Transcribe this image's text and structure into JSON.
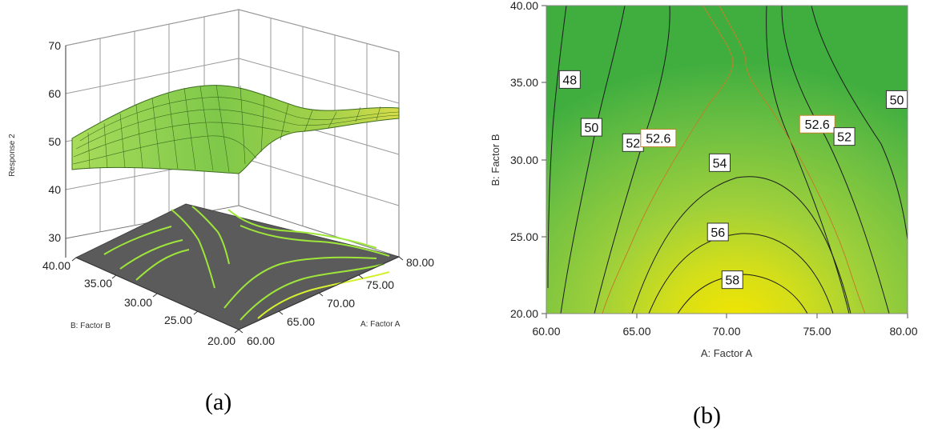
{
  "panels": {
    "a_caption": "(a)",
    "b_caption": "(b)"
  },
  "chart_data": [
    {
      "type": "surface3d",
      "zlabel": "Response 2",
      "xlabel": "A: Factor A",
      "ylabel": "B: Factor B",
      "zlim": [
        30,
        70
      ],
      "z_ticks": [
        "30",
        "40",
        "50",
        "60",
        "70"
      ],
      "x_ticks": [
        "60.00",
        "65.00",
        "70.00",
        "75.00",
        "80.00"
      ],
      "y_ticks": [
        "20.00",
        "25.00",
        "30.00",
        "35.00",
        "40.00"
      ],
      "grid": true,
      "surface_color": "#8fd14f",
      "floor_color": "#5b5b5b",
      "floor_contour_color": "#9ee63a"
    },
    {
      "type": "contour",
      "xlabel": "A: Factor A",
      "ylabel": "B: Factor B",
      "xlim": [
        60,
        80
      ],
      "ylim": [
        20,
        40
      ],
      "x_ticks": [
        "60.00",
        "65.00",
        "70.00",
        "75.00",
        "80.00"
      ],
      "y_ticks": [
        "20.00",
        "25.00",
        "30.00",
        "35.00",
        "40.00"
      ],
      "contour_labels": [
        {
          "text": "48",
          "x": 61.3,
          "y": 35.2
        },
        {
          "text": "50",
          "x": 62.5,
          "y": 32.1
        },
        {
          "text": "52",
          "x": 64.8,
          "y": 31.1
        },
        {
          "text": "52.6",
          "x": 66.2,
          "y": 31.4
        },
        {
          "text": "54",
          "x": 69.6,
          "y": 29.8
        },
        {
          "text": "56",
          "x": 69.5,
          "y": 25.3
        },
        {
          "text": "58",
          "x": 70.3,
          "y": 22.2
        },
        {
          "text": "50",
          "x": 79.4,
          "y": 33.9
        },
        {
          "text": "52.6",
          "x": 75.0,
          "y": 32.3
        },
        {
          "text": "52",
          "x": 76.5,
          "y": 31.5
        }
      ],
      "low_color": "#3fae3f",
      "high_color": "#f2e200",
      "line_color": "#1c1c1c",
      "highlight_color": "#c08028"
    }
  ]
}
